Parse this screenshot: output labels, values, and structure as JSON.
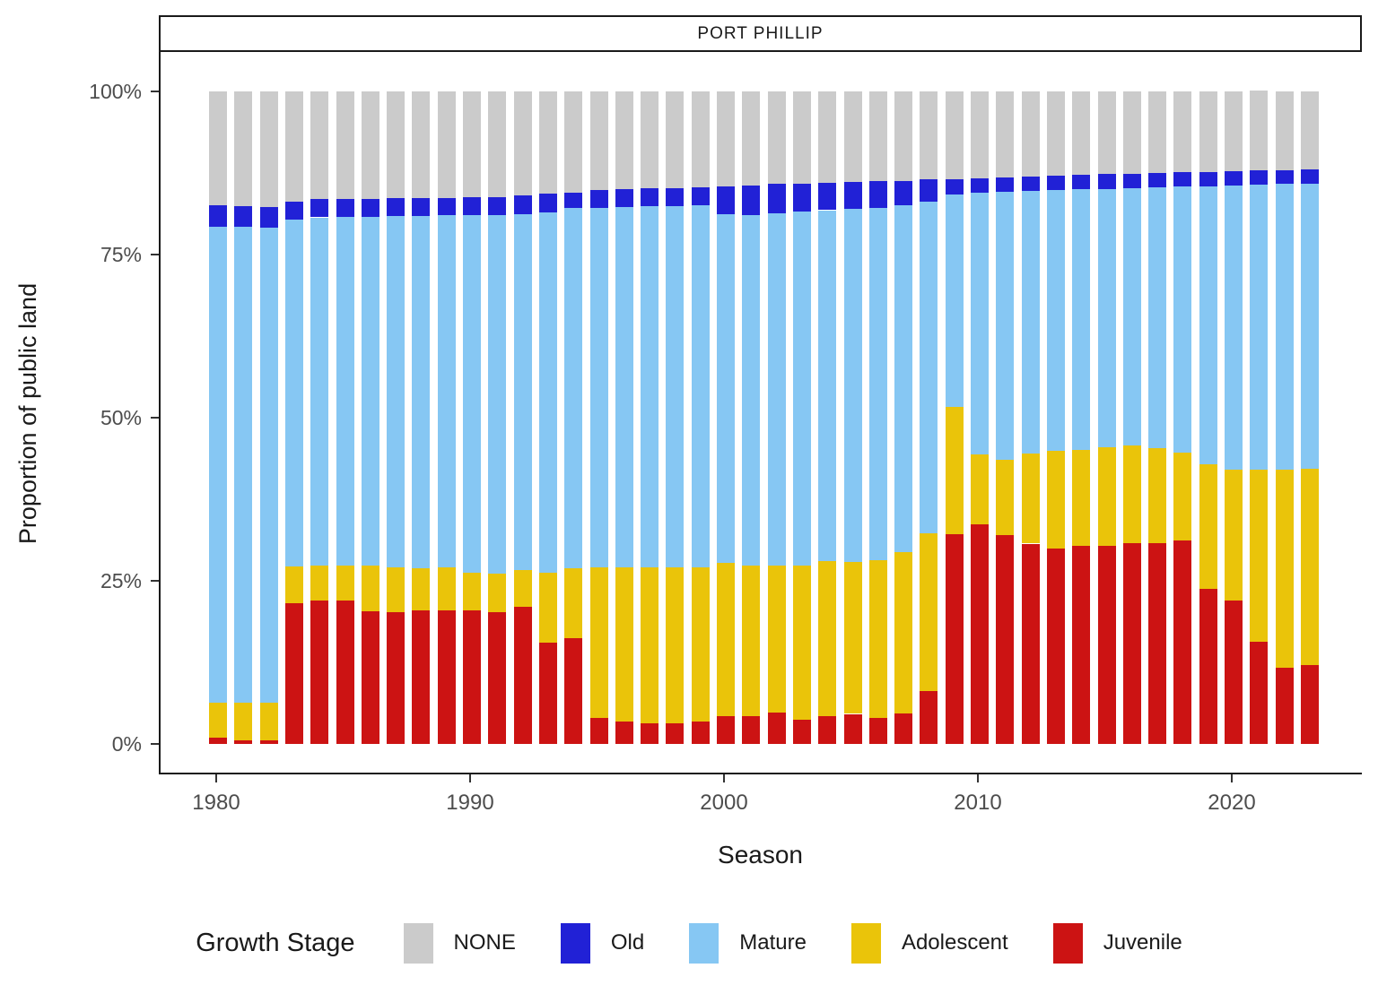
{
  "title_strip": {
    "label": "PORT PHILLIP"
  },
  "axes": {
    "y_title": "Proportion of public land",
    "x_title": "Season",
    "y_tick_labels": [
      "0%",
      "25%",
      "50%",
      "75%",
      "100%"
    ],
    "x_tick_labels": [
      "1980",
      "1990",
      "2000",
      "2010",
      "2020"
    ]
  },
  "legend": {
    "title": "Growth Stage",
    "items": [
      {
        "label": "NONE",
        "color": "#CBCBCB"
      },
      {
        "label": "Old",
        "color": "#2121D6"
      },
      {
        "label": "Mature",
        "color": "#86C7F3"
      },
      {
        "label": "Adolescent",
        "color": "#EAC40A"
      },
      {
        "label": "Juvenile",
        "color": "#CC1313"
      }
    ]
  },
  "chart_data": {
    "type": "bar",
    "stacked": true,
    "title": "PORT PHILLIP",
    "xlabel": "Season",
    "ylabel": "Proportion of public land",
    "unit": "percent",
    "ylim": [
      0,
      100
    ],
    "y_ticks": [
      0,
      25,
      50,
      75,
      100
    ],
    "x_ticks": [
      1980,
      1990,
      2000,
      2010,
      2020
    ],
    "grid": "off",
    "legend_position": "bottom",
    "stack_order_bottom_to_top": [
      "Juvenile",
      "Adolescent",
      "Mature",
      "Old",
      "NONE"
    ],
    "years": [
      1980,
      1981,
      1982,
      1983,
      1984,
      1985,
      1986,
      1987,
      1988,
      1989,
      1990,
      1991,
      1992,
      1993,
      1994,
      1995,
      1996,
      1997,
      1998,
      1999,
      2000,
      2001,
      2002,
      2003,
      2004,
      2005,
      2006,
      2007,
      2008,
      2009,
      2010,
      2011,
      2012,
      2013,
      2014,
      2015,
      2016,
      2017,
      2018,
      2019,
      2020,
      2021,
      2022,
      2023
    ],
    "series": [
      {
        "name": "Juvenile",
        "color": "#CC1313",
        "values": [
          1.0,
          0.5,
          0.5,
          21.5,
          22.0,
          22.0,
          20.3,
          20.2,
          20.4,
          20.4,
          20.4,
          20.2,
          21.0,
          15.5,
          16.2,
          4.0,
          3.5,
          3.2,
          3.2,
          3.5,
          4.2,
          4.3,
          4.8,
          3.7,
          4.2,
          4.6,
          4.0,
          4.7,
          8.1,
          32.1,
          33.6,
          32.0,
          30.7,
          30.0,
          30.3,
          30.4,
          30.8,
          30.8,
          31.2,
          23.8,
          22.0,
          15.6,
          11.7,
          12.1
        ]
      },
      {
        "name": "Adolescent",
        "color": "#EAC40A",
        "values": [
          5.3,
          5.8,
          5.8,
          5.7,
          5.3,
          5.3,
          7.0,
          6.8,
          6.5,
          6.6,
          5.8,
          5.9,
          5.7,
          10.8,
          10.7,
          23.0,
          23.5,
          23.9,
          23.8,
          23.6,
          23.5,
          23.1,
          22.6,
          23.7,
          23.8,
          23.3,
          24.2,
          24.7,
          24.2,
          19.6,
          10.8,
          11.6,
          13.8,
          14.9,
          14.8,
          15.0,
          15.0,
          14.5,
          13.4,
          19.0,
          20.1,
          26.5,
          30.4,
          30.1
        ]
      },
      {
        "name": "Mature",
        "color": "#86C7F3",
        "values": [
          73.0,
          72.9,
          72.8,
          53.2,
          53.4,
          53.5,
          53.5,
          53.9,
          54.0,
          54.0,
          54.8,
          55.0,
          54.5,
          55.2,
          55.2,
          55.2,
          55.3,
          55.3,
          55.4,
          55.4,
          53.5,
          53.7,
          53.9,
          54.2,
          53.8,
          54.1,
          54.0,
          53.2,
          50.8,
          32.5,
          40.1,
          41.0,
          40.3,
          40.0,
          39.9,
          39.6,
          39.4,
          40.0,
          40.8,
          42.7,
          43.5,
          43.6,
          43.7,
          43.7
        ]
      },
      {
        "name": "Old",
        "color": "#2121D6",
        "values": [
          3.2,
          3.2,
          3.2,
          2.7,
          2.8,
          2.7,
          2.7,
          2.7,
          2.7,
          2.7,
          2.8,
          2.7,
          2.8,
          2.8,
          2.4,
          2.7,
          2.7,
          2.7,
          2.8,
          2.8,
          4.2,
          4.5,
          4.5,
          4.3,
          4.2,
          4.1,
          4.0,
          3.7,
          3.4,
          2.4,
          2.2,
          2.2,
          2.2,
          2.2,
          2.2,
          2.3,
          2.2,
          2.2,
          2.2,
          2.2,
          2.2,
          2.2,
          2.1,
          2.1
        ]
      },
      {
        "name": "NONE",
        "color": "#CBCBCB",
        "values": [
          17.5,
          17.6,
          17.7,
          16.9,
          16.5,
          16.5,
          16.5,
          16.4,
          16.4,
          16.3,
          16.2,
          16.2,
          16.0,
          15.7,
          15.5,
          15.1,
          15.0,
          14.9,
          14.8,
          14.7,
          14.6,
          14.4,
          14.2,
          14.1,
          14.0,
          13.9,
          13.8,
          13.7,
          13.5,
          13.4,
          13.3,
          13.2,
          13.0,
          12.9,
          12.8,
          12.7,
          12.6,
          12.5,
          12.4,
          12.3,
          12.2,
          12.2,
          12.1,
          12.0
        ]
      }
    ]
  }
}
